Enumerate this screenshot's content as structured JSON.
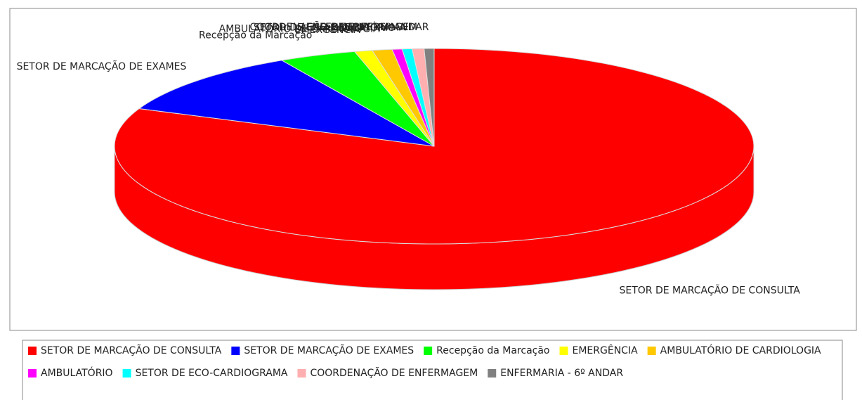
{
  "chart_data": {
    "type": "pie3d",
    "categories": [
      "SETOR DE MARCAÇÃO DE CONSULTA",
      "SETOR DE MARCAÇÃO DE EXAMES",
      "Recepção da Marcação",
      "EMERGÊNCIA",
      "AMBULATÓRIO DE CARDIOLOGIA",
      "AMBULATÓRIO",
      "SETOR DE ECO-CARDIOGRAMA",
      "COORDENAÇÃO DE ENFERMAGEM",
      "ENFERMARIA - 6º ANDAR"
    ],
    "values": [
      81.2,
      10.8,
      3.9,
      0.9,
      1.0,
      0.5,
      0.5,
      0.6,
      0.5
    ],
    "colors": [
      "#ff0000",
      "#0000ff",
      "#00ff00",
      "#ffff00",
      "#ffc800",
      "#ff00ff",
      "#00ffff",
      "#ffafaf",
      "#808080"
    ],
    "legend": "bottom"
  }
}
